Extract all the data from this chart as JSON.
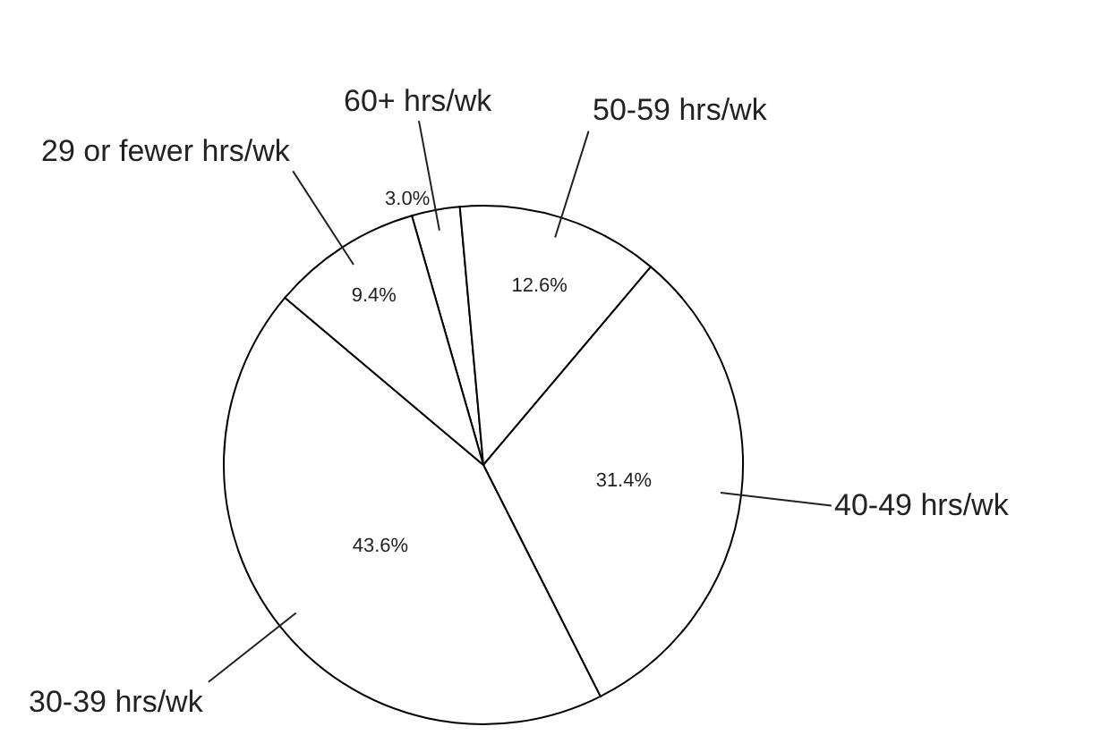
{
  "chart_data": {
    "type": "pie",
    "categories": [
      "60+ hrs/wk",
      "50-59 hrs/wk",
      "40-49 hrs/wk",
      "30-39 hrs/wk",
      "29 or fewer hrs/wk"
    ],
    "values": [
      3.0,
      12.6,
      31.4,
      43.6,
      9.4
    ],
    "value_labels": [
      "3.0%",
      "12.6%",
      "31.4%",
      "43.6%",
      "9.4%"
    ],
    "colors": [
      "#ffffff",
      "#ffffff",
      "#ffffff",
      "#ffffff",
      "#ffffff"
    ]
  }
}
